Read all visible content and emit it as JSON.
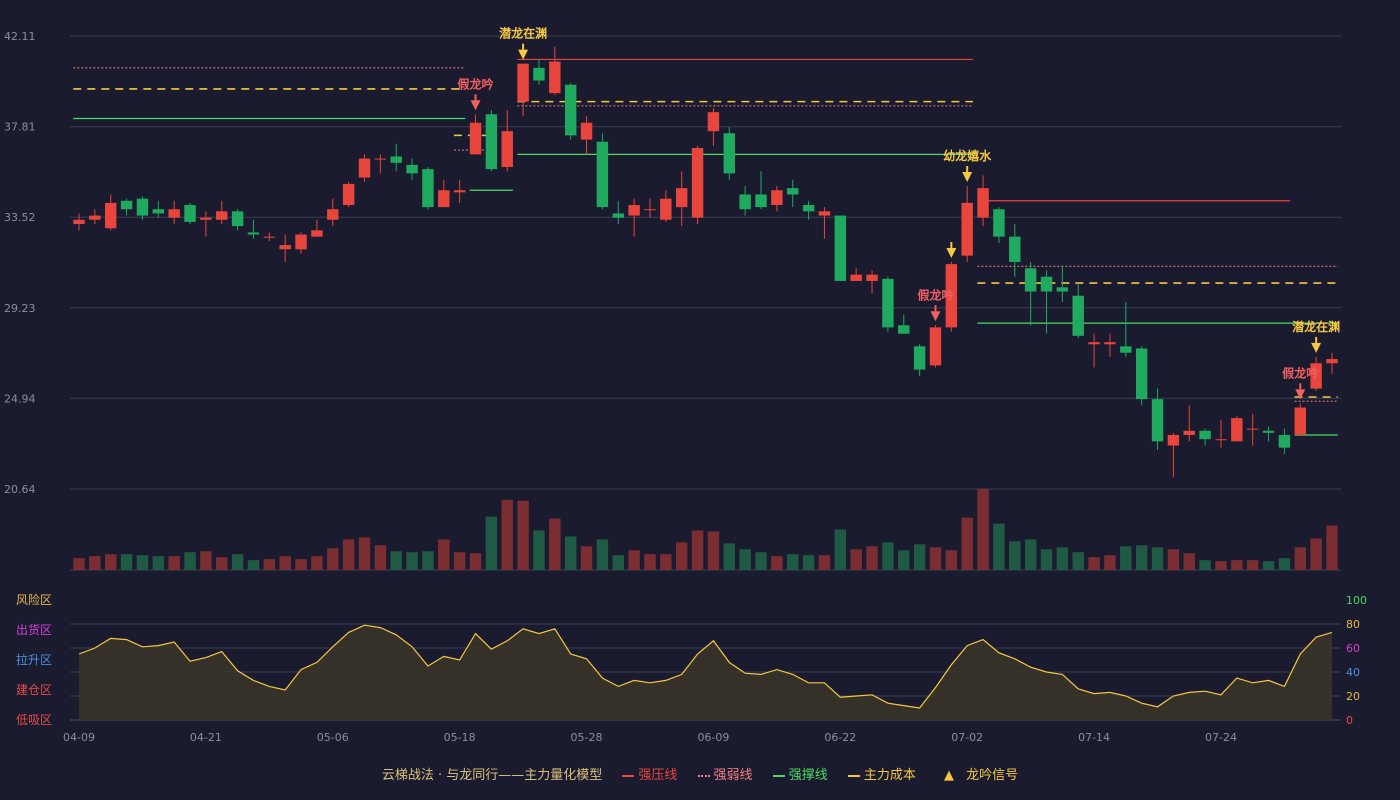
{
  "legend": {
    "title": "云梯战法 · 与龙同行——主力量化模型",
    "strong_pressure": "强压线",
    "weak_line": "强弱线",
    "support": "强撑线",
    "cost": "主力成本",
    "signal": "龙吟信号",
    "colors": {
      "strong_pressure": "#e8453c",
      "weak_line": "#f08080",
      "support": "#4cd964",
      "cost": "#f5c842",
      "signal": "#f5c842"
    }
  },
  "chart_data": [
    {
      "type": "candlestick",
      "title": "",
      "y_ticks": [
        "42.11",
        "37.81",
        "33.52",
        "29.23",
        "24.94",
        "20.64"
      ],
      "ylim": [
        20.64,
        42.11
      ],
      "x_ticks": [
        "04-09",
        "04-21",
        "05-06",
        "05-18",
        "05-28",
        "06-09",
        "06-22",
        "07-02",
        "07-14",
        "07-24"
      ],
      "x_tick_index": [
        0,
        8,
        16,
        24,
        32,
        40,
        48,
        56,
        64,
        72
      ],
      "colors": {
        "up": "#e8453c",
        "down": "#1faa5f",
        "up_volume": "#7a2e32",
        "down_volume": "#1f5a44"
      },
      "candles": [
        [
          33.2,
          33.4,
          33.7,
          32.9
        ],
        [
          33.4,
          33.6,
          33.9,
          33.2
        ],
        [
          33.0,
          34.2,
          34.6,
          32.9
        ],
        [
          34.3,
          33.9,
          34.4,
          33.6
        ],
        [
          34.4,
          33.6,
          34.5,
          33.4
        ],
        [
          33.9,
          33.7,
          34.3,
          33.5
        ],
        [
          33.5,
          33.9,
          34.3,
          33.2
        ],
        [
          34.1,
          33.3,
          34.2,
          33.2
        ],
        [
          33.4,
          33.5,
          33.8,
          32.6
        ],
        [
          33.4,
          33.8,
          34.3,
          33.2
        ],
        [
          33.8,
          33.1,
          33.9,
          32.9
        ],
        [
          32.8,
          32.7,
          33.4,
          32.5
        ],
        [
          32.6,
          32.6,
          32.8,
          32.4
        ],
        [
          32.0,
          32.2,
          32.7,
          31.4
        ],
        [
          32.0,
          32.7,
          32.8,
          31.8
        ],
        [
          32.6,
          32.9,
          33.4,
          32.6
        ],
        [
          33.4,
          33.9,
          34.4,
          33.1
        ],
        [
          34.1,
          35.1,
          35.2,
          34.0
        ],
        [
          35.4,
          36.3,
          36.5,
          35.2
        ],
        [
          36.3,
          36.3,
          36.5,
          35.6
        ],
        [
          36.4,
          36.1,
          37.0,
          35.7
        ],
        [
          36.0,
          35.6,
          36.3,
          35.3
        ],
        [
          35.8,
          34.0,
          35.9,
          33.9
        ],
        [
          34.0,
          34.8,
          35.3,
          34.0
        ],
        [
          34.7,
          34.8,
          35.3,
          34.2
        ],
        [
          36.5,
          38.0,
          38.4,
          36.5
        ],
        [
          38.4,
          35.8,
          38.6,
          35.7
        ],
        [
          35.9,
          37.6,
          38.6,
          35.7
        ],
        [
          39.0,
          40.8,
          40.8,
          38.3
        ],
        [
          40.6,
          40.0,
          41.0,
          39.8
        ],
        [
          39.4,
          40.9,
          41.6,
          39.3
        ],
        [
          39.8,
          37.4,
          39.9,
          37.2
        ],
        [
          37.2,
          38.0,
          38.3,
          36.5
        ],
        [
          37.1,
          34.0,
          37.5,
          33.9
        ],
        [
          33.7,
          33.5,
          34.3,
          33.2
        ],
        [
          33.6,
          34.1,
          34.4,
          32.6
        ],
        [
          33.9,
          33.9,
          34.4,
          33.5
        ],
        [
          33.4,
          34.4,
          34.8,
          33.3
        ],
        [
          34.0,
          34.9,
          35.7,
          33.1
        ],
        [
          33.5,
          36.8,
          36.9,
          33.2
        ],
        [
          37.6,
          38.5,
          38.7,
          36.9
        ],
        [
          37.5,
          35.6,
          37.8,
          35.3
        ],
        [
          34.6,
          33.9,
          35.0,
          33.6
        ],
        [
          34.6,
          34.0,
          35.7,
          33.9
        ],
        [
          34.1,
          34.8,
          35.0,
          33.8
        ],
        [
          34.9,
          34.6,
          35.3,
          34.0
        ],
        [
          34.1,
          33.8,
          34.3,
          33.4
        ],
        [
          33.6,
          33.8,
          34.0,
          32.5
        ],
        [
          33.6,
          30.5,
          33.6,
          30.5
        ],
        [
          30.5,
          30.8,
          31.1,
          30.5
        ],
        [
          30.5,
          30.8,
          31.0,
          29.9
        ],
        [
          30.6,
          28.3,
          30.7,
          28.1
        ],
        [
          28.4,
          28.0,
          28.9,
          28.0
        ],
        [
          27.4,
          26.3,
          27.5,
          26.0
        ],
        [
          26.5,
          28.3,
          28.4,
          26.4
        ],
        [
          28.3,
          31.3,
          31.4,
          28.1
        ],
        [
          31.7,
          34.2,
          35.0,
          31.4
        ],
        [
          33.5,
          34.9,
          35.5,
          33.1
        ],
        [
          33.9,
          32.6,
          34.0,
          32.3
        ],
        [
          32.6,
          31.4,
          33.2,
          30.7
        ],
        [
          31.1,
          30.0,
          31.4,
          28.4
        ],
        [
          30.7,
          30.0,
          31.0,
          28.0
        ],
        [
          30.2,
          30.0,
          31.2,
          29.5
        ],
        [
          29.8,
          27.9,
          30.4,
          27.8
        ],
        [
          27.5,
          27.6,
          28.0,
          26.4
        ],
        [
          27.5,
          27.6,
          28.0,
          26.9
        ],
        [
          27.4,
          27.1,
          29.5,
          26.9
        ],
        [
          27.3,
          24.9,
          27.4,
          24.6
        ],
        [
          24.9,
          22.9,
          25.4,
          22.5
        ],
        [
          22.7,
          23.2,
          23.3,
          21.2
        ],
        [
          23.2,
          23.4,
          24.6,
          22.9
        ],
        [
          23.4,
          23.0,
          23.5,
          22.7
        ],
        [
          23.0,
          23.0,
          23.9,
          22.6
        ],
        [
          22.9,
          24.0,
          24.1,
          22.9
        ],
        [
          23.5,
          23.5,
          24.2,
          22.7
        ],
        [
          23.4,
          23.3,
          23.6,
          22.9
        ],
        [
          23.2,
          22.6,
          23.5,
          22.3
        ],
        [
          23.2,
          24.5,
          24.7,
          23.2
        ],
        [
          25.4,
          26.6,
          26.9,
          25.3
        ],
        [
          26.6,
          26.8,
          27.1,
          26.1
        ]
      ],
      "volume": [
        12,
        14,
        16,
        16,
        15,
        14,
        14,
        18,
        19,
        13,
        16,
        10,
        11,
        14,
        11,
        14,
        22,
        31,
        33,
        25,
        19,
        18,
        19,
        31,
        18,
        17,
        54,
        71,
        70,
        40,
        52,
        34,
        24,
        31,
        15,
        20,
        16,
        16,
        28,
        40,
        39,
        27,
        21,
        18,
        14,
        16,
        15,
        15,
        41,
        21,
        24,
        28,
        20,
        26,
        23,
        20,
        53,
        82,
        47,
        29,
        31,
        21,
        23,
        18,
        13,
        15,
        24,
        25,
        23,
        21,
        17,
        10,
        9,
        10,
        10,
        9,
        12,
        23,
        32,
        45
      ],
      "volume_ylim": [
        0,
        82
      ],
      "levels": [
        {
          "type": "weak",
          "start": 0,
          "end": 24,
          "value": 40.6
        },
        {
          "type": "cost",
          "start": 0,
          "end": 24,
          "value": 39.6
        },
        {
          "type": "support",
          "start": 0,
          "end": 24,
          "value": 38.2
        },
        {
          "type": "cost",
          "start": 24,
          "end": 26,
          "value": 37.4
        },
        {
          "type": "weak",
          "start": 24,
          "end": 26,
          "value": 36.7
        },
        {
          "type": "support",
          "start": 25,
          "end": 27,
          "value": 34.8
        },
        {
          "type": "pressure",
          "start": 28,
          "end": 56,
          "value": 41.0
        },
        {
          "type": "cost",
          "start": 28,
          "end": 56,
          "value": 39.0
        },
        {
          "type": "weak",
          "start": 28,
          "end": 56,
          "value": 38.8
        },
        {
          "type": "support",
          "start": 28,
          "end": 56,
          "value": 36.5
        },
        {
          "type": "pressure",
          "start": 57,
          "end": 76,
          "value": 34.3
        },
        {
          "type": "weak",
          "start": 57,
          "end": 79,
          "value": 31.2
        },
        {
          "type": "cost",
          "start": 57,
          "end": 79,
          "value": 30.4
        },
        {
          "type": "support",
          "start": 57,
          "end": 79,
          "value": 28.5
        },
        {
          "type": "cost",
          "start": 77,
          "end": 79,
          "value": 25.0
        },
        {
          "type": "weak",
          "start": 77,
          "end": 79,
          "value": 24.8
        },
        {
          "type": "support",
          "start": 77,
          "end": 79,
          "value": 23.2
        }
      ],
      "signals": [
        {
          "index": 25,
          "label": "假龙吟",
          "kind": "fake"
        },
        {
          "index": 28,
          "label": "潜龙在渊",
          "kind": "dragon"
        },
        {
          "index": 54,
          "label": "假龙吟",
          "kind": "fake"
        },
        {
          "index": 55,
          "label": "",
          "kind": "dragon"
        },
        {
          "index": 56,
          "label": "幼龙嬉水",
          "kind": "dragon"
        },
        {
          "index": 77,
          "label": "假龙吟",
          "kind": "fake"
        },
        {
          "index": 78,
          "label": "潜龙在渊",
          "kind": "dragon"
        }
      ]
    },
    {
      "type": "line",
      "title": "",
      "zones": [
        {
          "label": "风险区",
          "color": "#e6b84a"
        },
        {
          "label": "出货区",
          "color": "#d43fd4"
        },
        {
          "label": "拉升区",
          "color": "#4a8fe6"
        },
        {
          "label": "建仓区",
          "color": "#e64a4a"
        },
        {
          "label": "低吸区",
          "color": "#e64a4a"
        }
      ],
      "y_ticks": [
        "100",
        "80",
        "60",
        "40",
        "20",
        "0"
      ],
      "ylim": [
        0,
        100
      ],
      "line_color": "#f5c842",
      "values": [
        55,
        60,
        68,
        67,
        61,
        62,
        65,
        49,
        52,
        57,
        41,
        33,
        28,
        25,
        42,
        48,
        61,
        73,
        79,
        77,
        71,
        61,
        45,
        53,
        50,
        72,
        59,
        66,
        76,
        72,
        76,
        55,
        51,
        35,
        28,
        33,
        31,
        33,
        38,
        55,
        66,
        48,
        39,
        38,
        42,
        38,
        31,
        31,
        19,
        20,
        21,
        14,
        12,
        10,
        27,
        46,
        62,
        67,
        56,
        51,
        44,
        40,
        38,
        26,
        22,
        23,
        20,
        14,
        11,
        20,
        23,
        24,
        21,
        35,
        31,
        33,
        28,
        55,
        69,
        73
      ]
    }
  ]
}
